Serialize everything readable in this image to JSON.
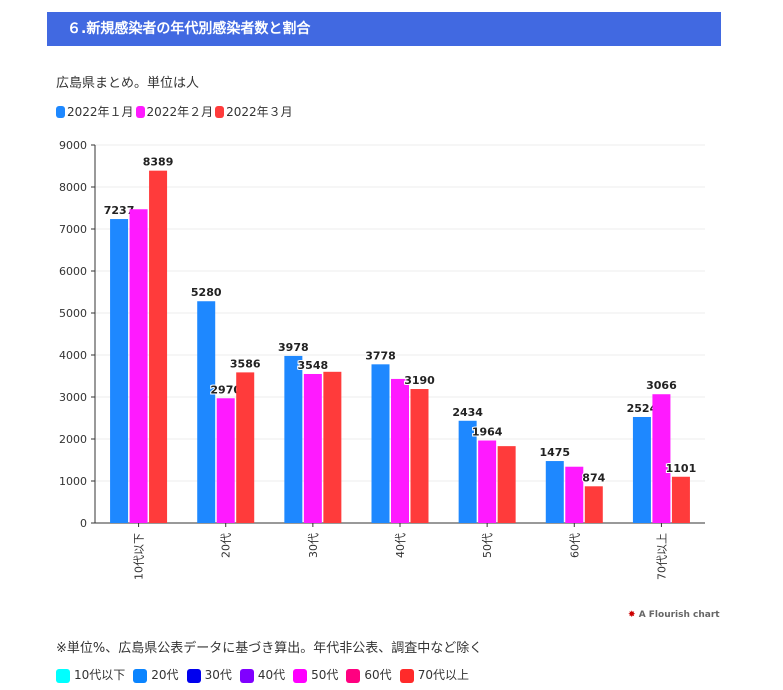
{
  "header": {
    "title": "６.新規感染者の年代別感染者数と割合"
  },
  "chart_data": {
    "type": "bar",
    "title": "",
    "subtitle": "広島県まとめ。単位は人",
    "categories": [
      "10代以下",
      "20代",
      "30代",
      "40代",
      "50代",
      "60代",
      "70代以上"
    ],
    "series": [
      {
        "name": "2022年１月",
        "color": "#1e88ff",
        "values": [
          7237,
          5280,
          3978,
          3778,
          2434,
          1475,
          2524
        ],
        "labels": [
          "7237",
          "5280",
          "3978",
          "3778",
          "2434",
          "1475",
          "2524"
        ]
      },
      {
        "name": "2022年２月",
        "color": "#ff1aff",
        "values": [
          7470,
          2970,
          3548,
          3430,
          1964,
          1340,
          3066
        ],
        "labels": [
          null,
          "2970",
          "3548",
          null,
          "1964",
          null,
          "3066"
        ]
      },
      {
        "name": "2022年３月",
        "color": "#ff3b3b",
        "values": [
          8389,
          3586,
          3600,
          3190,
          1830,
          874,
          1101
        ],
        "labels": [
          "8389",
          "3586",
          null,
          "3190",
          null,
          "874",
          "1101"
        ]
      }
    ],
    "yticks": [
      "0",
      "1000",
      "2000",
      "3000",
      "4000",
      "5000",
      "6000",
      "7000",
      "8000",
      "9000"
    ],
    "ylim": [
      0,
      9000
    ],
    "grid": true,
    "legend": "top-left"
  },
  "footer": {
    "credit": "A Flourish chart",
    "note": "※単位%、広島県公表データに基づき算出。年代非公表、調査中など除く",
    "legend": [
      {
        "label": "10代以下",
        "color": "#00ffff"
      },
      {
        "label": "20代",
        "color": "#0a84ff"
      },
      {
        "label": "30代",
        "color": "#0000ee"
      },
      {
        "label": "40代",
        "color": "#8000ff"
      },
      {
        "label": "50代",
        "color": "#ff00ff"
      },
      {
        "label": "60代",
        "color": "#ff0080"
      },
      {
        "label": "70代以上",
        "color": "#ff2a2a"
      }
    ]
  }
}
